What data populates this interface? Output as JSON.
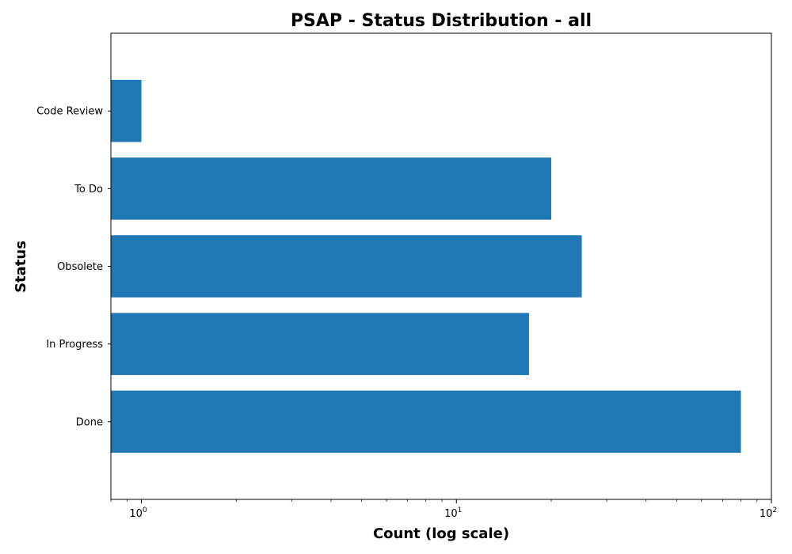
{
  "chart_data": {
    "type": "bar",
    "orientation": "horizontal",
    "title": "PSAP - Status Distribution - all",
    "xlabel": "Count (log scale)",
    "ylabel": "Status",
    "x_scale": "log",
    "xlim": [
      0.8,
      100
    ],
    "x_ticks": [
      {
        "value": 1,
        "base": "10",
        "exp": "0"
      },
      {
        "value": 10,
        "base": "10",
        "exp": "1"
      },
      {
        "value": 100,
        "base": "10",
        "exp": "2"
      }
    ],
    "categories": [
      "Code Review",
      "To Do",
      "Obsolete",
      "In Progress",
      "Done"
    ],
    "values": [
      1,
      20,
      25,
      17,
      80
    ],
    "bar_color": "#1f77b4",
    "grid": false,
    "legend": "none"
  }
}
